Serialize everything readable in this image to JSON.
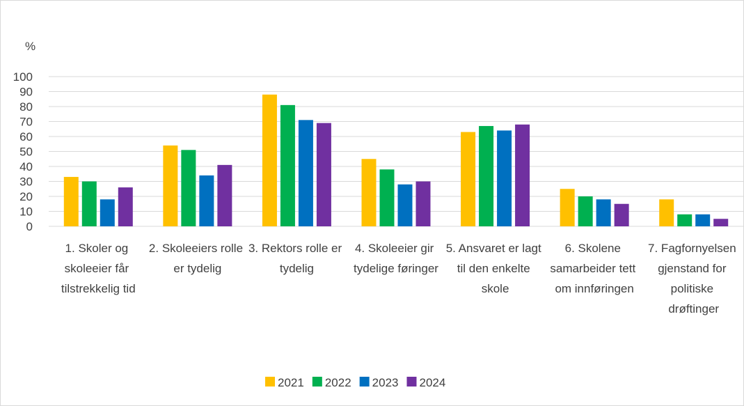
{
  "chart_data": {
    "type": "bar",
    "y_label": "%",
    "categories": [
      "1. Skoler og skoleeier får tilstrekkelig tid",
      "2. Skoleeiers rolle er tydelig",
      "3. Rektors rolle er tydelig",
      "4. Skoleeier gir tydelige føringer",
      "5. Ansvaret er lagt til den enkelte skole",
      "6. Skolene samarbeider tett om innføringen",
      "7. Fagfornyelsen gjenstand for politiske drøftinger"
    ],
    "series": [
      {
        "name": "2021",
        "color": "#ffc000",
        "values": [
          33,
          54,
          88,
          45,
          63,
          25,
          18
        ]
      },
      {
        "name": "2022",
        "color": "#00b050",
        "values": [
          30,
          51,
          81,
          38,
          67,
          20,
          8
        ]
      },
      {
        "name": "2023",
        "color": "#0070c0",
        "values": [
          18,
          34,
          71,
          28,
          64,
          18,
          8
        ]
      },
      {
        "name": "2024",
        "color": "#7030a0",
        "values": [
          26,
          41,
          69,
          30,
          68,
          15,
          5
        ]
      }
    ],
    "ylim": [
      0,
      100
    ],
    "yticks": [
      0,
      10,
      20,
      30,
      40,
      50,
      60,
      70,
      80,
      90,
      100
    ],
    "grid": true,
    "legend": "bottom"
  }
}
